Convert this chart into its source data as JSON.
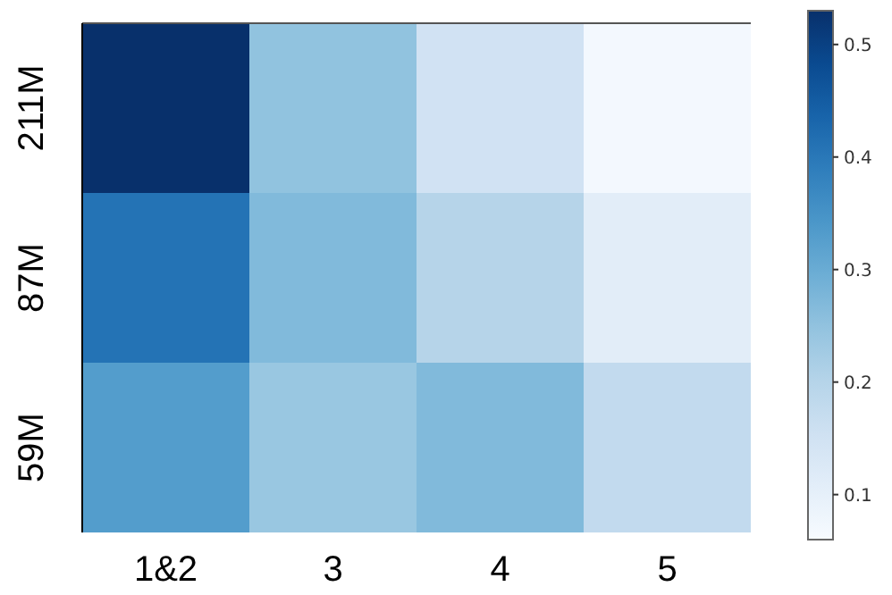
{
  "chart_data": {
    "type": "heatmap",
    "categories": [
      "1&2",
      "3",
      "4",
      "5"
    ],
    "y_categories": [
      "211M",
      "87M",
      "59M"
    ],
    "cells": [
      [
        0.53,
        0.25,
        0.15,
        0.07
      ],
      [
        0.41,
        0.27,
        0.2,
        0.11
      ],
      [
        0.33,
        0.24,
        0.27,
        0.18
      ]
    ],
    "clim": [
      0.06,
      0.53
    ],
    "cticks": [
      0.1,
      0.2,
      0.3,
      0.4,
      0.5
    ]
  }
}
